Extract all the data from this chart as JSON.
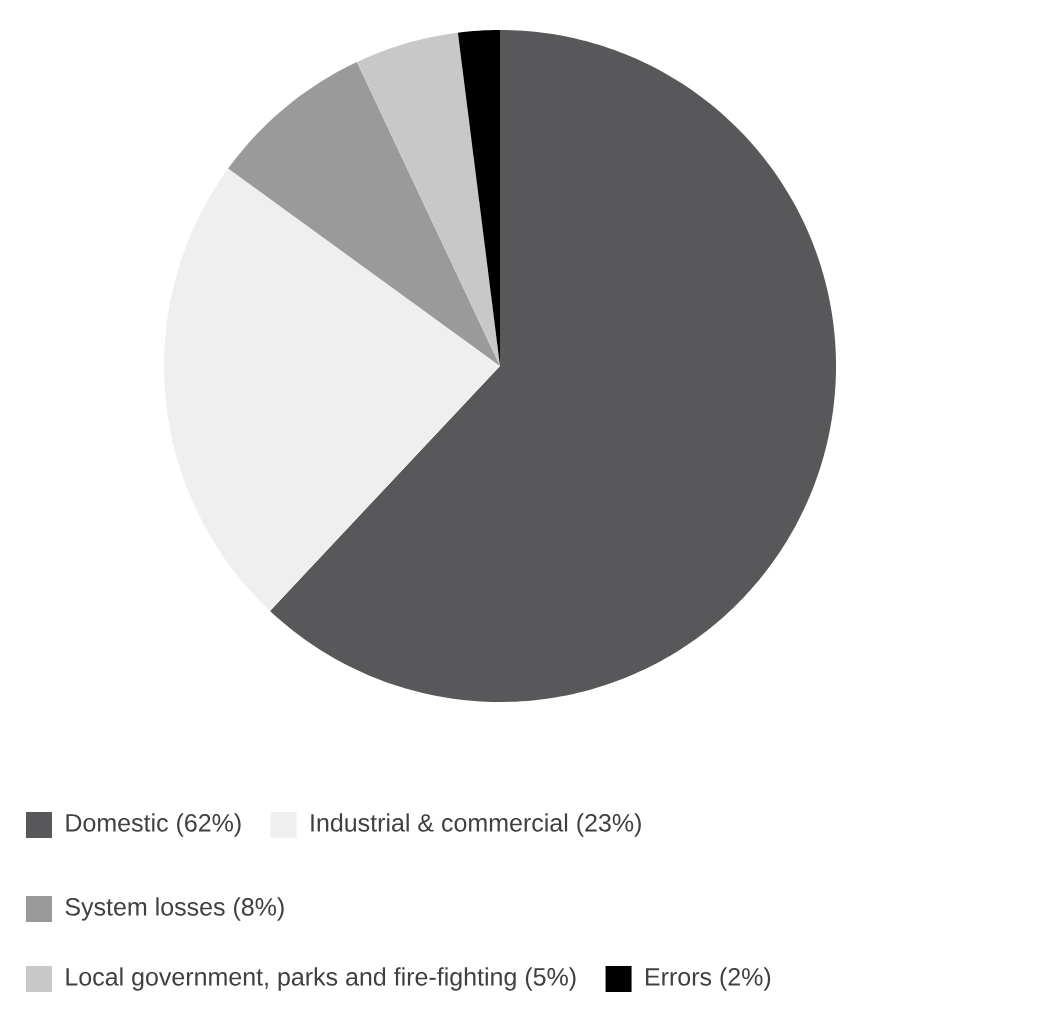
{
  "chart_data": {
    "type": "pie",
    "categories": [
      "Domestic (62%)",
      "Industrial & commercial (23%)",
      "System losses (8%)",
      "Local government, parks and fire-fighting (5%)",
      "Errors (2%)"
    ],
    "values": [
      62,
      23,
      8,
      5,
      2
    ],
    "colors": [
      "#58585a",
      "#eeefee",
      "#9a9a9a",
      "#c8c8c8",
      "#000000"
    ],
    "legend": "bottom"
  }
}
